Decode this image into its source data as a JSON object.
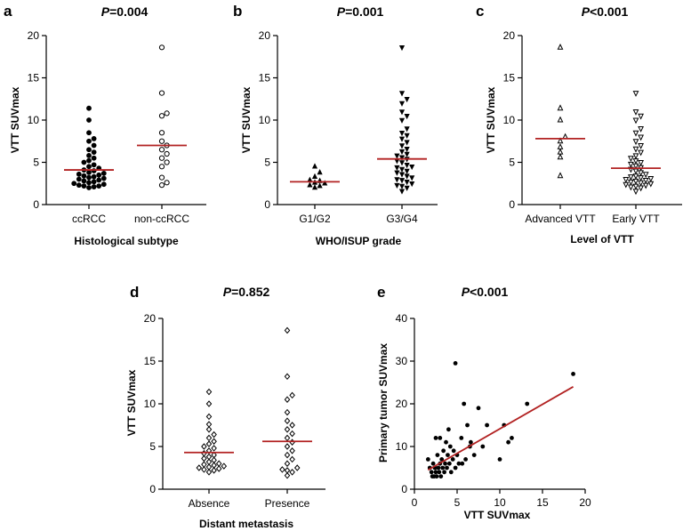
{
  "colors": {
    "mean_line": "#b22222",
    "axis": "#000000",
    "point": "#000000"
  },
  "chart_data": [
    {
      "panel": "a",
      "type": "scatter",
      "title_p": "P",
      "title_rest": "=0.004",
      "xlabel": "Histological subtype",
      "ylabel": "VTT SUVmax",
      "ylim": [
        0,
        20
      ],
      "yticks": [
        0,
        5,
        10,
        15,
        20
      ],
      "marker": "circle",
      "groups": [
        {
          "name": "ccRCC",
          "marker": "circle",
          "mean": 4.1,
          "values": [
            2.0,
            2.1,
            2.2,
            2.2,
            2.3,
            2.4,
            2.5,
            2.6,
            2.7,
            2.8,
            2.9,
            3.0,
            3.1,
            3.2,
            3.3,
            3.4,
            3.5,
            3.6,
            3.7,
            3.8,
            4.0,
            4.1,
            4.3,
            4.5,
            4.7,
            5.0,
            5.2,
            5.5,
            5.8,
            6.2,
            6.5,
            7.0,
            7.5,
            7.8,
            8.5,
            10.0,
            11.4
          ]
        },
        {
          "name": "non-ccRCC",
          "marker": "open-circle",
          "mean": 7.0,
          "values": [
            2.3,
            2.6,
            3.2,
            4.5,
            5.0,
            5.5,
            6.0,
            6.5,
            7.0,
            7.5,
            8.5,
            10.5,
            10.8,
            13.2,
            18.6
          ]
        }
      ]
    },
    {
      "panel": "b",
      "type": "scatter",
      "title_p": "P",
      "title_rest": "=0.001",
      "xlabel": "WHO/ISUP grade",
      "ylabel": "VTT SUVmax",
      "ylim": [
        0,
        20
      ],
      "yticks": [
        0,
        5,
        10,
        15,
        20
      ],
      "groups": [
        {
          "name": "G1/G2",
          "marker": "triangle-up",
          "mean": 2.7,
          "values": [
            2.0,
            2.2,
            2.3,
            2.5,
            2.6,
            2.8,
            2.9,
            3.3,
            3.8,
            4.5
          ]
        },
        {
          "name": "G3/G4",
          "marker": "triangle-down",
          "mean": 5.4,
          "values": [
            1.6,
            2.0,
            2.2,
            2.3,
            2.5,
            2.7,
            2.9,
            3.0,
            3.2,
            3.4,
            3.6,
            3.8,
            4.0,
            4.2,
            4.4,
            4.5,
            4.7,
            5.0,
            5.2,
            5.4,
            5.6,
            5.8,
            6.0,
            6.3,
            6.6,
            7.0,
            7.4,
            7.8,
            8.2,
            8.5,
            9.0,
            10.0,
            10.5,
            11.0,
            12.0,
            12.5,
            13.2,
            18.6
          ]
        }
      ]
    },
    {
      "panel": "c",
      "type": "scatter",
      "title_p": "P",
      "title_rest": "<0.001",
      "xlabel": "Level of VTT",
      "ylabel": "VTT SUVmax",
      "ylim": [
        0,
        20
      ],
      "yticks": [
        0,
        5,
        10,
        15,
        20
      ],
      "groups": [
        {
          "name": "Advanced VTT",
          "marker": "open-triangle-up",
          "mean": 7.8,
          "values": [
            3.4,
            5.6,
            6.2,
            6.8,
            7.5,
            8.0,
            10.0,
            11.4,
            18.6
          ]
        },
        {
          "name": "Early VTT",
          "marker": "open-triangle-down",
          "mean": 4.3,
          "values": [
            1.6,
            2.0,
            2.1,
            2.2,
            2.3,
            2.4,
            2.5,
            2.6,
            2.7,
            2.8,
            2.9,
            3.0,
            3.1,
            3.2,
            3.3,
            3.4,
            3.6,
            3.8,
            4.0,
            4.2,
            4.4,
            4.6,
            4.8,
            5.0,
            5.2,
            5.5,
            5.8,
            6.2,
            6.6,
            7.0,
            7.5,
            8.0,
            8.5,
            9.0,
            10.0,
            10.5,
            11.0,
            13.2
          ]
        }
      ]
    },
    {
      "panel": "d",
      "type": "scatter",
      "title_p": "P",
      "title_rest": "=0.852",
      "xlabel": "Distant metastasis",
      "ylabel": "VTT SUVmax",
      "ylim": [
        0,
        20
      ],
      "yticks": [
        0,
        5,
        10,
        15,
        20
      ],
      "groups": [
        {
          "name": "Absence",
          "marker": "open-diamond",
          "mean": 4.3,
          "values": [
            2.0,
            2.2,
            2.3,
            2.4,
            2.5,
            2.6,
            2.7,
            2.8,
            2.9,
            3.0,
            3.2,
            3.4,
            3.6,
            3.8,
            4.0,
            4.2,
            4.5,
            4.8,
            5.0,
            5.3,
            5.6,
            6.0,
            6.4,
            7.0,
            7.6,
            8.5,
            10.0,
            11.4
          ]
        },
        {
          "name": "Presence",
          "marker": "open-diamond",
          "mean": 5.6,
          "values": [
            1.6,
            2.0,
            2.2,
            2.3,
            2.5,
            3.0,
            3.5,
            4.0,
            4.5,
            5.0,
            5.5,
            6.0,
            6.5,
            7.0,
            7.5,
            8.0,
            9.0,
            10.5,
            11.0,
            13.2,
            18.6
          ]
        }
      ]
    },
    {
      "panel": "e",
      "type": "scatter",
      "title_p": "P",
      "title_rest": "<0.001",
      "xlabel": "VTT SUVmax",
      "ylabel": "Primary tumor SUVmax",
      "xlim": [
        0,
        20
      ],
      "ylim": [
        0,
        40
      ],
      "xticks": [
        0,
        5,
        10,
        15,
        20
      ],
      "yticks": [
        0,
        10,
        20,
        30,
        40
      ],
      "fit_line": {
        "x": [
          1.6,
          18.6
        ],
        "y": [
          4.5,
          24.0
        ]
      },
      "points": [
        [
          1.6,
          7
        ],
        [
          1.8,
          5
        ],
        [
          2.0,
          4
        ],
        [
          2.1,
          3
        ],
        [
          2.2,
          6
        ],
        [
          2.3,
          3
        ],
        [
          2.4,
          5
        ],
        [
          2.5,
          4
        ],
        [
          2.5,
          12
        ],
        [
          2.6,
          3
        ],
        [
          2.7,
          8
        ],
        [
          2.8,
          5
        ],
        [
          2.9,
          4
        ],
        [
          3.0,
          6
        ],
        [
          3.0,
          12
        ],
        [
          3.1,
          3
        ],
        [
          3.2,
          7
        ],
        [
          3.3,
          5
        ],
        [
          3.4,
          9
        ],
        [
          3.5,
          4
        ],
        [
          3.6,
          6
        ],
        [
          3.7,
          11
        ],
        [
          3.8,
          5
        ],
        [
          3.9,
          8
        ],
        [
          4.0,
          14
        ],
        [
          4.1,
          6
        ],
        [
          4.2,
          10
        ],
        [
          4.3,
          4
        ],
        [
          4.5,
          7
        ],
        [
          4.6,
          9
        ],
        [
          4.8,
          5
        ],
        [
          4.8,
          29.5
        ],
        [
          5.0,
          8
        ],
        [
          5.2,
          6
        ],
        [
          5.5,
          12
        ],
        [
          5.6,
          6
        ],
        [
          5.8,
          20
        ],
        [
          6.0,
          7
        ],
        [
          6.2,
          15
        ],
        [
          6.5,
          10
        ],
        [
          6.6,
          11
        ],
        [
          7.0,
          8
        ],
        [
          7.5,
          19
        ],
        [
          8.0,
          10
        ],
        [
          8.5,
          15
        ],
        [
          10.0,
          7
        ],
        [
          10.5,
          15
        ],
        [
          11.0,
          11
        ],
        [
          11.4,
          12
        ],
        [
          13.2,
          20
        ],
        [
          18.6,
          27
        ]
      ]
    }
  ]
}
